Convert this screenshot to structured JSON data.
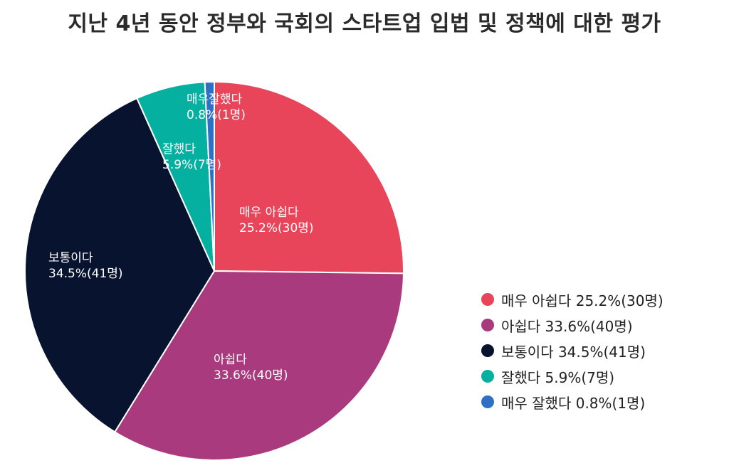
{
  "chart_data": {
    "type": "pie",
    "title": "지난 4년 동안 정부와 국회의 스타트업 입법 및 정책에 대한 평가",
    "slices": [
      {
        "name": "매우 아쉽다",
        "value": 25.2,
        "count": 30,
        "color": "#E8455A",
        "slice_label": [
          "매우 아쉽다",
          "25.2%(30명)"
        ],
        "legend_label": "매우 아쉽다 25.2%(30명)"
      },
      {
        "name": "아쉽다",
        "value": 33.6,
        "count": 40,
        "color": "#AA3A7E",
        "slice_label": [
          "아쉽다",
          "33.6%(40명)"
        ],
        "legend_label": "아쉽다 33.6%(40명)"
      },
      {
        "name": "보통이다",
        "value": 34.5,
        "count": 41,
        "color": "#07132F",
        "slice_label": [
          "보통이다",
          "34.5%(41명)"
        ],
        "legend_label": "보통이다 34.5%(41명)"
      },
      {
        "name": "잘했다",
        "value": 5.9,
        "count": 7,
        "color": "#05B0A0",
        "slice_label": [
          "잘했다",
          "5.9%(7명)"
        ],
        "legend_label": "잘했다 5.9%(7명)"
      },
      {
        "name": "매우 잘했다",
        "value": 0.8,
        "count": 1,
        "color": "#2F6FC4",
        "slice_label": [
          "매우잘했다",
          "0.8%(1명)"
        ],
        "legend_label": "매우 잘했다 0.8%(1명)"
      }
    ],
    "legend_position": "right"
  }
}
